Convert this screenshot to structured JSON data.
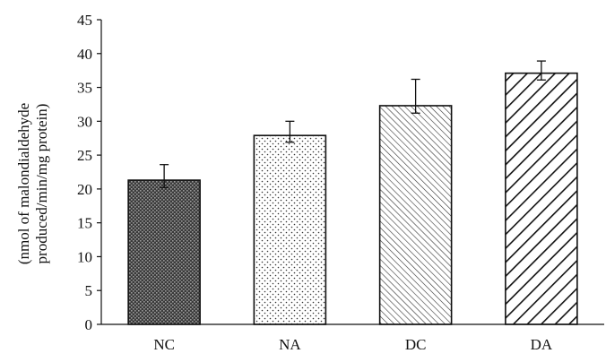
{
  "chart_data": {
    "type": "bar",
    "title": "",
    "xlabel": "",
    "ylabel": [
      "(nmol of malondialdehyde",
      "produced/min/mg protein)"
    ],
    "categories": [
      "NC",
      "NA",
      "DC",
      "DA"
    ],
    "values": [
      21.3,
      27.9,
      32.3,
      37.1
    ],
    "error": [
      {
        "plus": 2.3,
        "minus": 1.1
      },
      {
        "plus": 2.1,
        "minus": 1.0
      },
      {
        "plus": 3.9,
        "minus": 1.1
      },
      {
        "plus": 1.8,
        "minus": 1.0
      }
    ],
    "patterns": [
      "crosshatch-dark",
      "dots",
      "fine-diagonal",
      "wide-diagonal"
    ],
    "ylim": [
      0,
      45
    ],
    "yticks": [
      0,
      5,
      10,
      15,
      20,
      25,
      30,
      35,
      40,
      45
    ],
    "grid": false,
    "legend": "none",
    "colors": {
      "axis": "#111111",
      "bar_outline": "#111111",
      "bar_fill": "#ffffff"
    }
  }
}
